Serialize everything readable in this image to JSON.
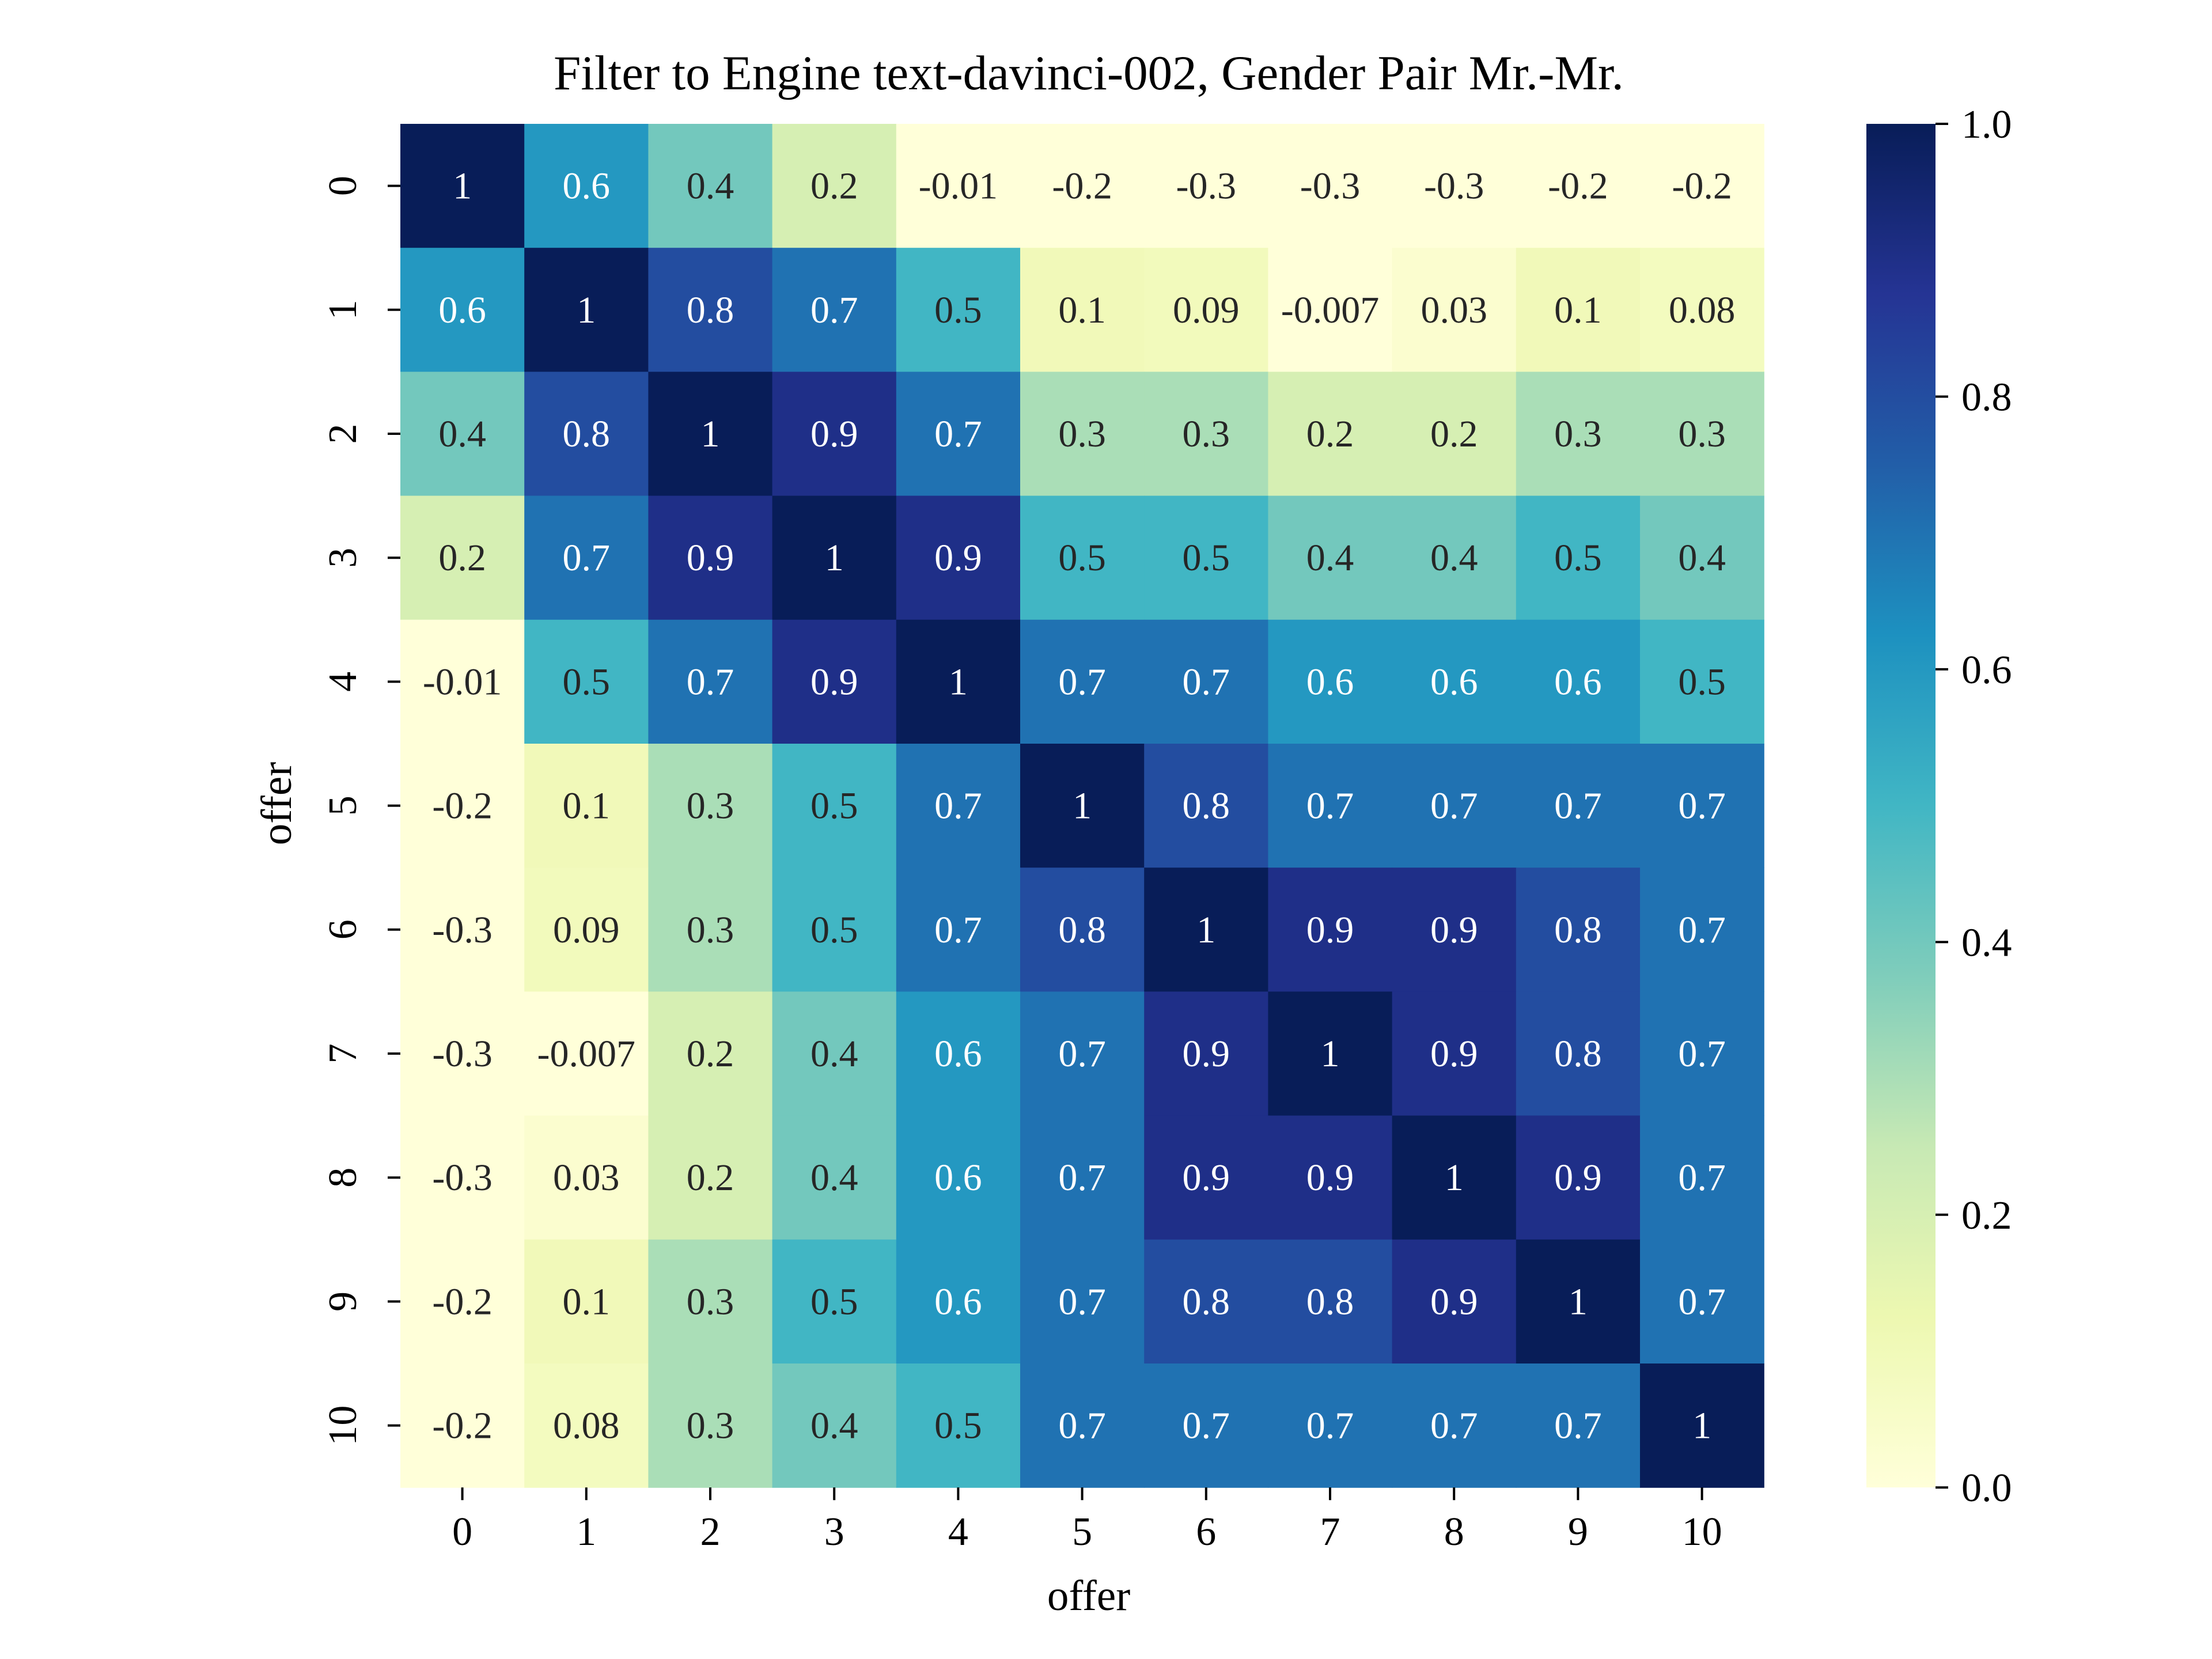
{
  "chart_data": {
    "type": "heatmap",
    "title": "Filter to Engine text-davinci-002, Gender Pair Mr.-Mr.",
    "xlabel": "offer",
    "ylabel": "offer",
    "x_categories": [
      "0",
      "1",
      "2",
      "3",
      "4",
      "5",
      "6",
      "7",
      "8",
      "9",
      "10"
    ],
    "y_categories": [
      "0",
      "1",
      "2",
      "3",
      "4",
      "5",
      "6",
      "7",
      "8",
      "9",
      "10"
    ],
    "values": [
      [
        1,
        0.6,
        0.4,
        0.2,
        -0.01,
        -0.2,
        -0.3,
        -0.3,
        -0.3,
        -0.2,
        -0.2
      ],
      [
        0.6,
        1,
        0.8,
        0.7,
        0.5,
        0.1,
        0.09,
        -0.007,
        0.03,
        0.1,
        0.08
      ],
      [
        0.4,
        0.8,
        1,
        0.9,
        0.7,
        0.3,
        0.3,
        0.2,
        0.2,
        0.3,
        0.3
      ],
      [
        0.2,
        0.7,
        0.9,
        1,
        0.9,
        0.5,
        0.5,
        0.4,
        0.4,
        0.5,
        0.4
      ],
      [
        -0.01,
        0.5,
        0.7,
        0.9,
        1,
        0.7,
        0.7,
        0.6,
        0.6,
        0.6,
        0.5
      ],
      [
        -0.2,
        0.1,
        0.3,
        0.5,
        0.7,
        1,
        0.8,
        0.7,
        0.7,
        0.7,
        0.7
      ],
      [
        -0.3,
        0.09,
        0.3,
        0.5,
        0.7,
        0.8,
        1,
        0.9,
        0.9,
        0.8,
        0.7
      ],
      [
        -0.3,
        -0.007,
        0.2,
        0.4,
        0.6,
        0.7,
        0.9,
        1,
        0.9,
        0.8,
        0.7
      ],
      [
        -0.3,
        0.03,
        0.2,
        0.4,
        0.6,
        0.7,
        0.9,
        0.9,
        1,
        0.9,
        0.7
      ],
      [
        -0.2,
        0.1,
        0.3,
        0.5,
        0.6,
        0.7,
        0.8,
        0.8,
        0.9,
        1,
        0.7
      ],
      [
        -0.2,
        0.08,
        0.3,
        0.4,
        0.5,
        0.7,
        0.7,
        0.7,
        0.7,
        0.7,
        1
      ]
    ],
    "colormap": "YlGnBu",
    "colormap_stops": [
      "#ffffd9",
      "#edf8b1",
      "#c7e9b4",
      "#7fcdbb",
      "#41b6c4",
      "#1d91c0",
      "#225ea8",
      "#253494",
      "#081d58"
    ],
    "vmin": 0.0,
    "vmax": 1.0,
    "colorbar_ticks": [
      "0.0",
      "0.2",
      "0.4",
      "0.6",
      "0.8",
      "1.0"
    ],
    "text_color_dark": "#262626",
    "text_color_light": "#ffffff"
  }
}
